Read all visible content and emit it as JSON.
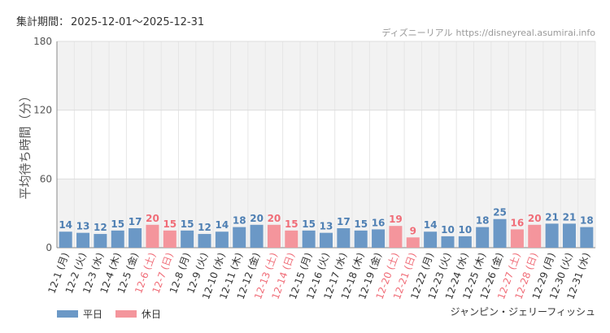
{
  "header": {
    "period_label": "集計期間：",
    "period_value": "2025-12-01～2025-12-31"
  },
  "credit": {
    "site_name": "ディズニーリアル",
    "site_url": "https://disneyreal.asumirai.info"
  },
  "attraction_name": "ジャンピン・ジェリーフィッシュ",
  "colors": {
    "weekday": "#6b98c6",
    "holiday": "#f4959c",
    "weekday_label": "#4e7fb3",
    "holiday_label": "#f06d78",
    "band": "#f2f2f2",
    "grid": "#e6e6e6"
  },
  "chart_data": {
    "type": "bar",
    "ylabel": "平均待ち時間（分）",
    "xlabel": "",
    "ylim": [
      0,
      180
    ],
    "yticks": [
      0,
      60,
      120,
      180
    ],
    "bands": [
      [
        120,
        180
      ],
      [
        0,
        60
      ]
    ],
    "grid": true,
    "legend_position": "bottom-left",
    "categories": [
      "12-1 (月)",
      "12-2 (火)",
      "12-3 (水)",
      "12-4 (木)",
      "12-5 (金)",
      "12-6 (土)",
      "12-7 (日)",
      "12-8 (月)",
      "12-9 (火)",
      "12-10 (水)",
      "12-11 (木)",
      "12-12 (金)",
      "12-13 (土)",
      "12-14 (日)",
      "12-15 (月)",
      "12-16 (火)",
      "12-17 (水)",
      "12-18 (木)",
      "12-19 (金)",
      "12-20 (土)",
      "12-21 (日)",
      "12-22 (月)",
      "12-23 (火)",
      "12-24 (水)",
      "12-25 (木)",
      "12-26 (金)",
      "12-27 (土)",
      "12-28 (日)",
      "12-29 (月)",
      "12-30 (火)",
      "12-31 (水)"
    ],
    "values": [
      14,
      13,
      12,
      15,
      17,
      20,
      15,
      15,
      12,
      14,
      18,
      20,
      20,
      15,
      15,
      13,
      17,
      15,
      16,
      19,
      9,
      14,
      10,
      10,
      18,
      25,
      16,
      20,
      21,
      21,
      18
    ],
    "day_type": [
      "平日",
      "平日",
      "平日",
      "平日",
      "平日",
      "休日",
      "休日",
      "平日",
      "平日",
      "平日",
      "平日",
      "平日",
      "休日",
      "休日",
      "平日",
      "平日",
      "平日",
      "平日",
      "平日",
      "休日",
      "休日",
      "平日",
      "平日",
      "平日",
      "平日",
      "平日",
      "休日",
      "休日",
      "平日",
      "平日",
      "平日"
    ],
    "series": [
      {
        "name": "平日",
        "color": "#6b98c6"
      },
      {
        "name": "休日",
        "color": "#f4959c"
      }
    ]
  }
}
